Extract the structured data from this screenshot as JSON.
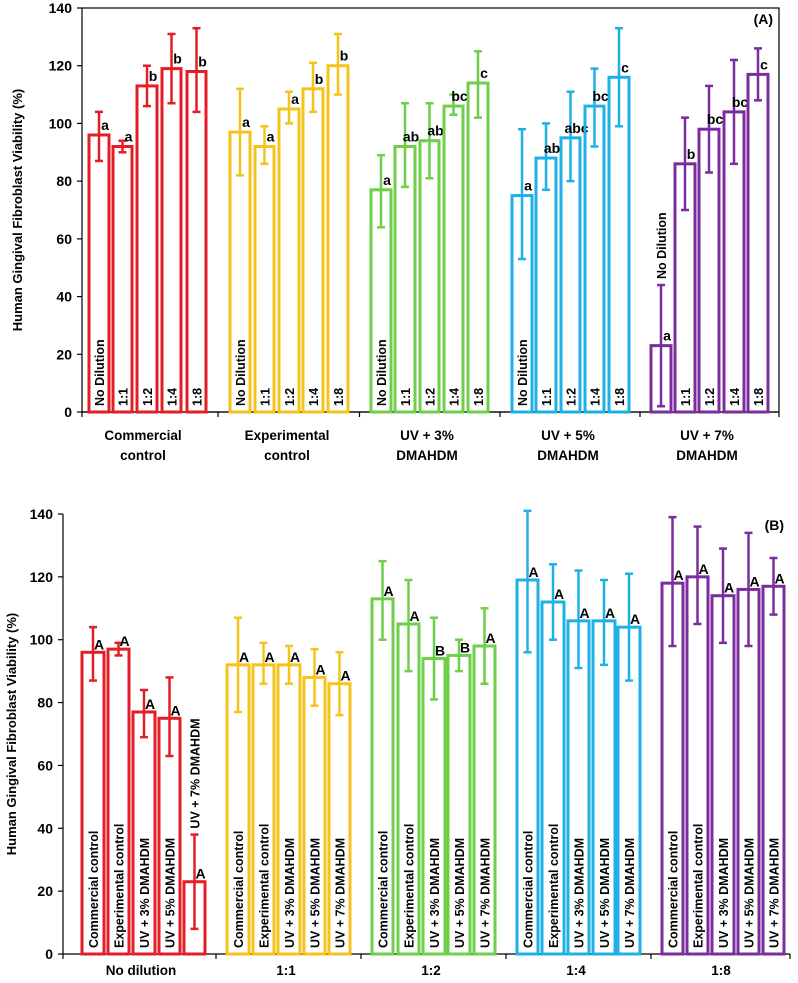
{
  "colors": {
    "red": "#e41e26",
    "yellow": "#f5c31c",
    "green": "#6fcf4a",
    "blue": "#1fb1e6",
    "purple": "#7b2c9e"
  },
  "chart_data": [
    {
      "type": "bar",
      "panel_label": "(A)",
      "ylabel": "Human Gingival Fibroblast Viability (%)",
      "xlabel": "",
      "ylim": [
        0,
        140
      ],
      "yticks": [
        "0",
        "20",
        "40",
        "60",
        "80",
        "100",
        "120",
        "140"
      ],
      "groups": [
        {
          "label_lines": [
            "Commercial",
            "control"
          ],
          "color": "red",
          "bars": [
            {
              "label": "No Dilution",
              "value": 96,
              "err_low": 87,
              "err_high": 104,
              "letter": "a"
            },
            {
              "label": "1:1",
              "value": 92,
              "err_low": 90,
              "err_high": 94,
              "letter": "a"
            },
            {
              "label": "1:2",
              "value": 113,
              "err_low": 106,
              "err_high": 120,
              "letter": "b"
            },
            {
              "label": "1:4",
              "value": 119,
              "err_low": 107,
              "err_high": 131,
              "letter": "b"
            },
            {
              "label": "1:8",
              "value": 118,
              "err_low": 104,
              "err_high": 133,
              "letter": "b"
            }
          ]
        },
        {
          "label_lines": [
            "Experimental",
            "control"
          ],
          "color": "yellow",
          "bars": [
            {
              "label": "No Dilution",
              "value": 97,
              "err_low": 82,
              "err_high": 112,
              "letter": "a"
            },
            {
              "label": "1:1",
              "value": 92,
              "err_low": 86,
              "err_high": 99,
              "letter": "a"
            },
            {
              "label": "1:2",
              "value": 105,
              "err_low": 100,
              "err_high": 111,
              "letter": "a"
            },
            {
              "label": "1:4",
              "value": 112,
              "err_low": 104,
              "err_high": 121,
              "letter": "b"
            },
            {
              "label": "1:8",
              "value": 120,
              "err_low": 110,
              "err_high": 131,
              "letter": "b"
            }
          ]
        },
        {
          "label_lines": [
            "UV + 3%",
            "DMAHDM"
          ],
          "color": "green",
          "bars": [
            {
              "label": "No Dilution",
              "value": 77,
              "err_low": 64,
              "err_high": 89,
              "letter": "a"
            },
            {
              "label": "1:1",
              "value": 92,
              "err_low": 78,
              "err_high": 107,
              "letter": "ab"
            },
            {
              "label": "1:2",
              "value": 94,
              "err_low": 81,
              "err_high": 107,
              "letter": "ab"
            },
            {
              "label": "1:4",
              "value": 106,
              "err_low": 103,
              "err_high": 110,
              "letter": "bc"
            },
            {
              "label": "1:8",
              "value": 114,
              "err_low": 102,
              "err_high": 125,
              "letter": "c"
            }
          ]
        },
        {
          "label_lines": [
            "UV + 5%",
            "DMAHDM"
          ],
          "color": "blue",
          "bars": [
            {
              "label": "No Dilution",
              "value": 75,
              "err_low": 53,
              "err_high": 98,
              "letter": "a"
            },
            {
              "label": "1:1",
              "value": 88,
              "err_low": 77,
              "err_high": 100,
              "letter": "ab"
            },
            {
              "label": "1:2",
              "value": 95,
              "err_low": 80,
              "err_high": 111,
              "letter": "abc"
            },
            {
              "label": "1:4",
              "value": 106,
              "err_low": 92,
              "err_high": 119,
              "letter": "bc"
            },
            {
              "label": "1:8",
              "value": 116,
              "err_low": 99,
              "err_high": 133,
              "letter": "c"
            }
          ]
        },
        {
          "label_lines": [
            "UV + 7%",
            "DMAHDM"
          ],
          "color": "purple",
          "bars": [
            {
              "label": "No Dilution",
              "value": 23,
              "err_low": 2,
              "err_high": 44,
              "letter": "a"
            },
            {
              "label": "1:1",
              "value": 86,
              "err_low": 70,
              "err_high": 102,
              "letter": "b"
            },
            {
              "label": "1:2",
              "value": 98,
              "err_low": 83,
              "err_high": 113,
              "letter": "bc"
            },
            {
              "label": "1:4",
              "value": 104,
              "err_low": 86,
              "err_high": 122,
              "letter": "bc"
            },
            {
              "label": "1:8",
              "value": 117,
              "err_low": 108,
              "err_high": 126,
              "letter": "c"
            }
          ]
        }
      ]
    },
    {
      "type": "bar",
      "panel_label": "(B)",
      "ylabel": "Human Gingival Fibroblast Viability (%)",
      "xlabel": "",
      "ylim": [
        0,
        140
      ],
      "yticks": [
        "0",
        "20",
        "40",
        "60",
        "80",
        "100",
        "120",
        "140"
      ],
      "groups": [
        {
          "label_lines": [
            "No dilution"
          ],
          "color": "red",
          "bars": [
            {
              "label": "Commercial control",
              "value": 96,
              "err_low": 87,
              "err_high": 104,
              "letter": "A"
            },
            {
              "label": "Experimental control",
              "value": 97,
              "err_low": 95,
              "err_high": 99,
              "letter": "A"
            },
            {
              "label": "UV + 3% DMAHDM",
              "value": 77,
              "err_low": 69,
              "err_high": 84,
              "letter": "A"
            },
            {
              "label": "UV + 5% DMAHDM",
              "value": 75,
              "err_low": 63,
              "err_high": 88,
              "letter": "A"
            },
            {
              "label": "UV + 7% DMAHDM",
              "value": 23,
              "err_low": 8,
              "err_high": 38,
              "letter": "A"
            }
          ]
        },
        {
          "label_lines": [
            "1:1"
          ],
          "color": "yellow",
          "bars": [
            {
              "label": "Commercial control",
              "value": 92,
              "err_low": 77,
              "err_high": 107,
              "letter": "A"
            },
            {
              "label": "Experimental control",
              "value": 92,
              "err_low": 86,
              "err_high": 99,
              "letter": "A"
            },
            {
              "label": "UV + 3% DMAHDM",
              "value": 92,
              "err_low": 86,
              "err_high": 98,
              "letter": "A"
            },
            {
              "label": "UV + 5% DMAHDM",
              "value": 88,
              "err_low": 79,
              "err_high": 97,
              "letter": "A"
            },
            {
              "label": "UV + 7% DMAHDM",
              "value": 86,
              "err_low": 76,
              "err_high": 96,
              "letter": "A"
            }
          ]
        },
        {
          "label_lines": [
            "1:2"
          ],
          "color": "green",
          "bars": [
            {
              "label": "Commercial control",
              "value": 113,
              "err_low": 100,
              "err_high": 125,
              "letter": "A"
            },
            {
              "label": "Experimental control",
              "value": 105,
              "err_low": 90,
              "err_high": 119,
              "letter": "A"
            },
            {
              "label": "UV + 3% DMAHDM",
              "value": 94,
              "err_low": 81,
              "err_high": 107,
              "letter": "B"
            },
            {
              "label": "UV + 5% DMAHDM",
              "value": 95,
              "err_low": 90,
              "err_high": 100,
              "letter": "B"
            },
            {
              "label": "UV + 7% DMAHDM",
              "value": 98,
              "err_low": 86,
              "err_high": 110,
              "letter": "A"
            }
          ]
        },
        {
          "label_lines": [
            "1:4"
          ],
          "color": "blue",
          "bars": [
            {
              "label": "Commercial control",
              "value": 119,
              "err_low": 96,
              "err_high": 141,
              "letter": "A"
            },
            {
              "label": "Experimental control",
              "value": 112,
              "err_low": 100,
              "err_high": 124,
              "letter": "A"
            },
            {
              "label": "UV + 3% DMAHDM",
              "value": 106,
              "err_low": 91,
              "err_high": 122,
              "letter": "A"
            },
            {
              "label": "UV + 5% DMAHDM",
              "value": 106,
              "err_low": 92,
              "err_high": 119,
              "letter": "A"
            },
            {
              "label": "UV + 7% DMAHDM",
              "value": 104,
              "err_low": 87,
              "err_high": 121,
              "letter": "A"
            }
          ]
        },
        {
          "label_lines": [
            "1:8"
          ],
          "color": "purple",
          "bars": [
            {
              "label": "Commercial control",
              "value": 118,
              "err_low": 98,
              "err_high": 139,
              "letter": "A"
            },
            {
              "label": "Experimental control",
              "value": 120,
              "err_low": 105,
              "err_high": 136,
              "letter": "A"
            },
            {
              "label": "UV + 3% DMAHDM",
              "value": 114,
              "err_low": 99,
              "err_high": 129,
              "letter": "A"
            },
            {
              "label": "UV + 5% DMAHDM",
              "value": 116,
              "err_low": 98,
              "err_high": 134,
              "letter": "A"
            },
            {
              "label": "UV + 7% DMAHDM",
              "value": 117,
              "err_low": 108,
              "err_high": 126,
              "letter": "A"
            }
          ]
        }
      ]
    }
  ]
}
